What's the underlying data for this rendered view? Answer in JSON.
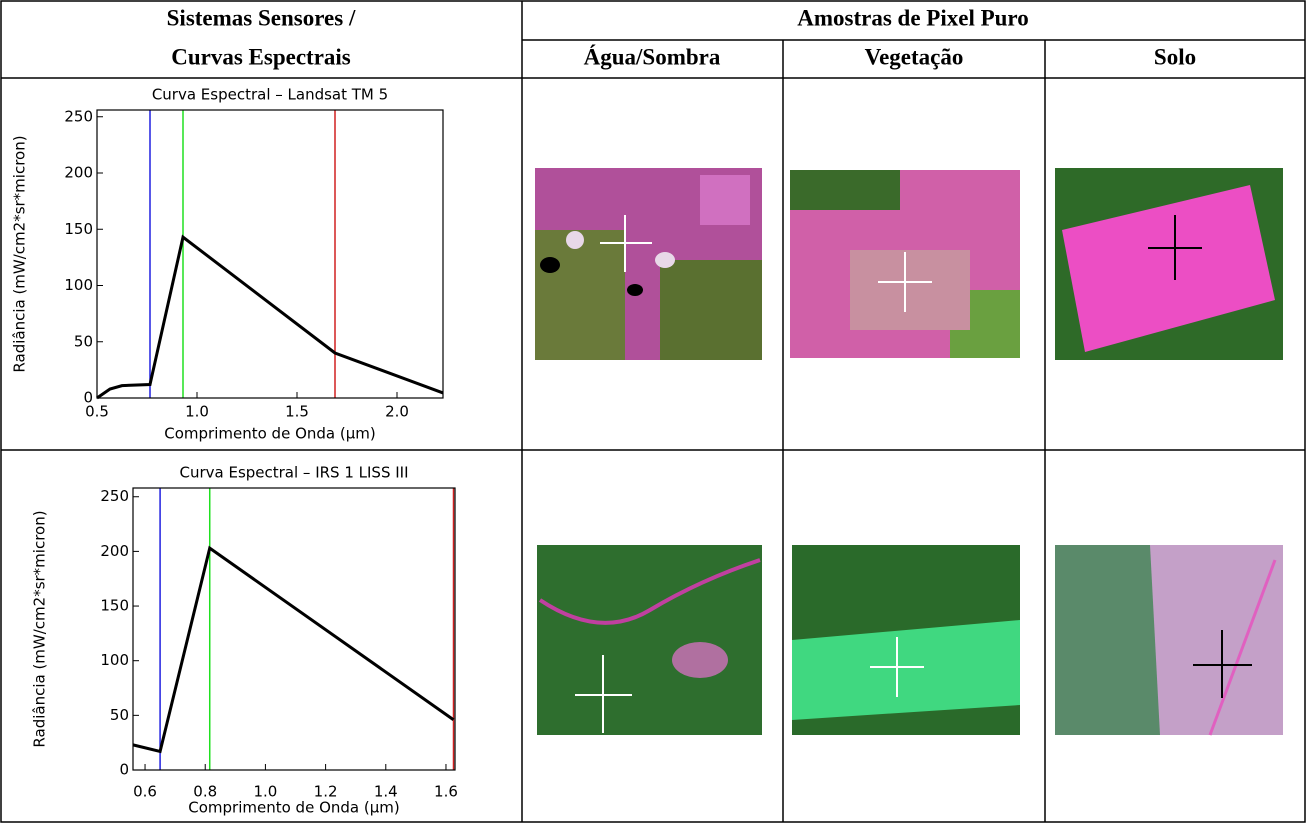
{
  "header": {
    "sensors": "Sistemas Sensores /",
    "curves": "Curvas Espectrais",
    "samples": "Amostras de Pixel Puro",
    "columns": [
      "Água/Sombra",
      "Vegetação",
      "Solo"
    ]
  },
  "chart_data": [
    {
      "type": "line",
      "title": "Curva Espectral – Landsat TM 5",
      "x_label": "Comprimento de Onda (μm)",
      "y_label": "Radiância (mW/cm2*sr*micron)",
      "x": [
        0.5,
        0.565,
        0.625,
        0.765,
        0.93,
        1.69,
        2.23
      ],
      "values": [
        0,
        8,
        11,
        12,
        143,
        40,
        4.5
      ],
      "color": "#000000",
      "xlim": [
        0.5,
        2.23
      ],
      "ylim": [
        0,
        256
      ],
      "xticks": [
        0.5,
        {
          "value": 1,
          "label": "1.0"
        },
        1.5,
        {
          "value": 2,
          "label": "2.0"
        }
      ],
      "yticks": [
        0,
        50,
        100,
        150,
        200,
        250
      ],
      "bands": [
        {
          "x": 0.765,
          "color": "#2020e0"
        },
        {
          "x": 0.93,
          "color": "#20e020"
        },
        {
          "x": 1.69,
          "color": "#d02020"
        }
      ]
    },
    {
      "type": "line",
      "title": "Curva Espectral – IRS 1 LISS III",
      "x_label": "Comprimento de Onda (μm)",
      "y_label": "Radiância (mW/cm2*sr*micron)",
      "x": [
        0.56,
        0.65,
        0.815,
        1.625
      ],
      "values": [
        23,
        17,
        203,
        46
      ],
      "color": "#000000",
      "xlim": [
        0.56,
        1.63
      ],
      "ylim": [
        0,
        258
      ],
      "xticks": [
        0.6,
        0.8,
        {
          "value": 1,
          "label": "1.0"
        },
        1.2,
        1.4,
        1.6
      ],
      "yticks": [
        0,
        50,
        100,
        150,
        200,
        250
      ],
      "bands": [
        {
          "x": 0.65,
          "color": "#2020e0"
        },
        {
          "x": 0.815,
          "color": "#20e020"
        },
        {
          "x": 1.625,
          "color": "#d02020"
        }
      ]
    }
  ]
}
